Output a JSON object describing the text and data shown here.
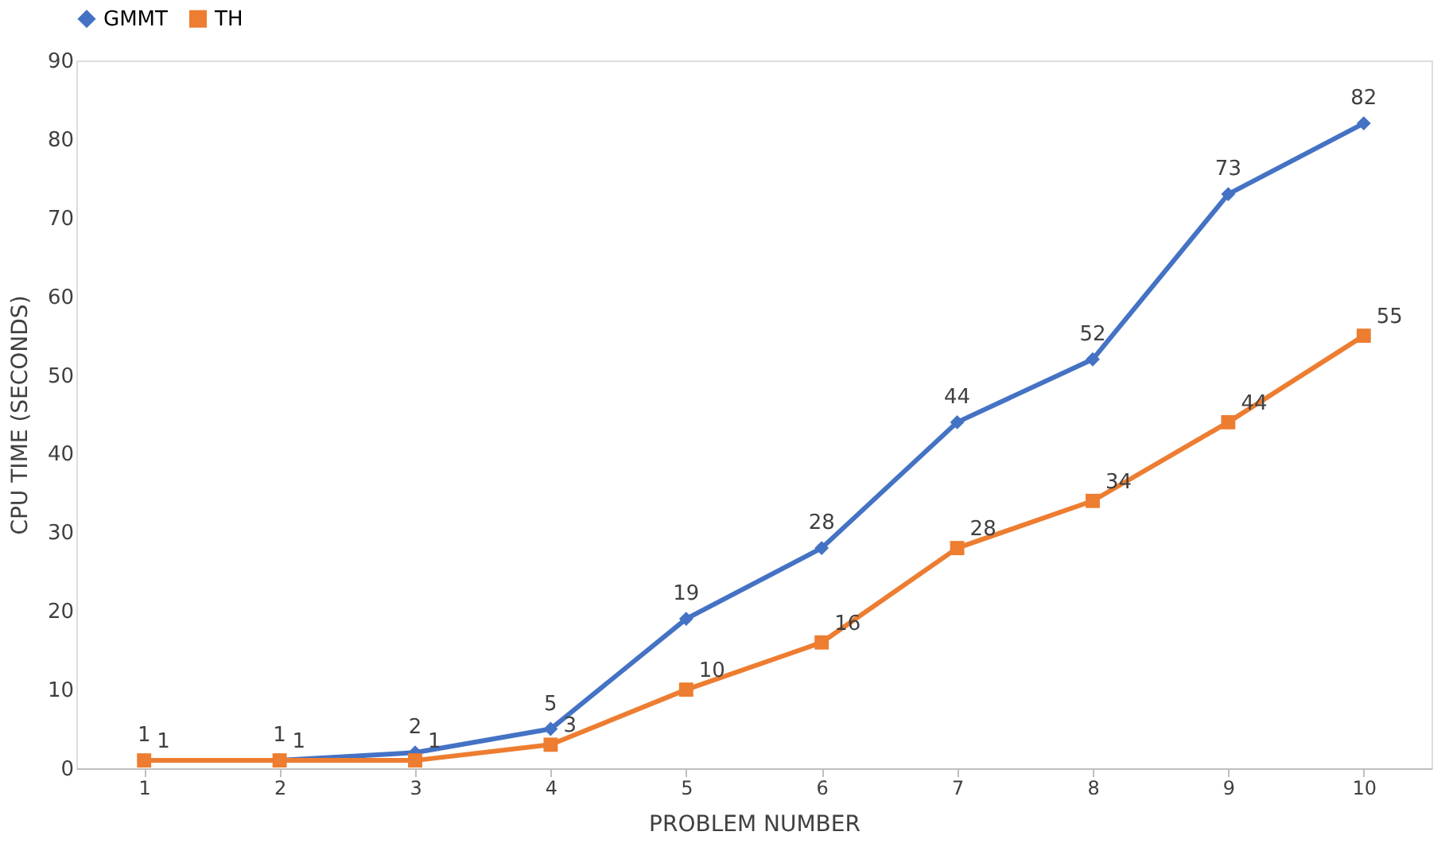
{
  "chart_data": {
    "type": "line",
    "xlabel": "PROBLEM NUMBER",
    "ylabel": "CPU TIME (SECONDS)",
    "categories": [
      "1",
      "2",
      "3",
      "4",
      "5",
      "6",
      "7",
      "8",
      "9",
      "10"
    ],
    "series": [
      {
        "name": "GMMT",
        "color": "#4472c4",
        "marker": "diamond",
        "values": [
          1,
          1,
          2,
          5,
          19,
          28,
          44,
          52,
          73,
          82
        ]
      },
      {
        "name": "TH",
        "color": "#ed7d31",
        "marker": "square",
        "values": [
          1,
          1,
          1,
          3,
          10,
          16,
          28,
          34,
          44,
          55
        ]
      }
    ],
    "ylim": [
      0,
      90
    ],
    "yticks": [
      0,
      10,
      20,
      30,
      40,
      50,
      60,
      70,
      80,
      90
    ],
    "grid": false,
    "legend": "top",
    "data_labels": true,
    "line_style": "solid"
  }
}
